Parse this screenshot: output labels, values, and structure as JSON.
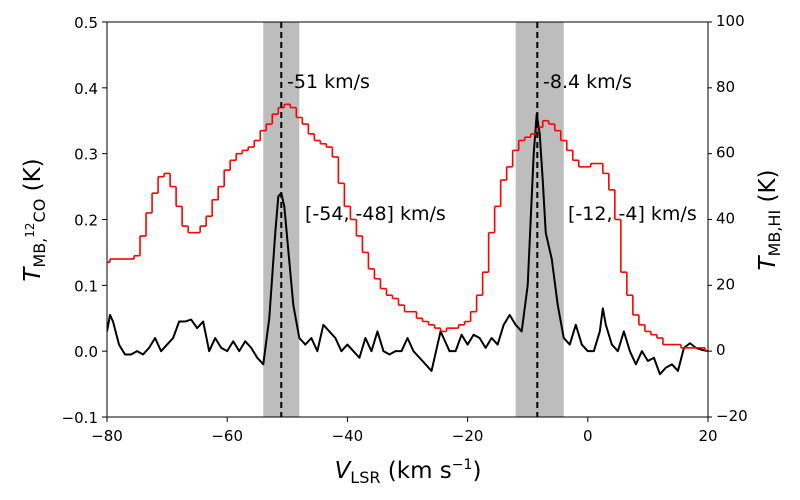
{
  "chart_data": {
    "type": "line",
    "xlabel": [
      "V",
      "LSR",
      " (km s",
      "−1",
      ")"
    ],
    "ylabel": [
      "T",
      "MB,",
      "12",
      "CO",
      " (K)"
    ],
    "y2label": [
      "T",
      "MB,HI",
      " (K)"
    ],
    "xlim": [
      -80,
      20
    ],
    "xticks": [
      {
        "value": -80,
        "label": "−80"
      },
      {
        "value": -60,
        "label": "−60"
      },
      {
        "value": -40,
        "label": "−40"
      },
      {
        "value": -20,
        "label": "−20"
      },
      0,
      20
    ],
    "ylim": [
      -0.1,
      0.5
    ],
    "yticks": [
      {
        "value": -0.1,
        "label": "−0.1"
      },
      {
        "value": 0,
        "label": "0.0"
      },
      0.1,
      0.2,
      0.3,
      0.4,
      0.5
    ],
    "y2lim": [
      -20,
      100
    ],
    "y2ticks": [
      {
        "value": -20,
        "label": "−20"
      },
      0,
      20,
      40,
      60,
      80,
      100
    ],
    "bands": [
      [
        -54,
        -48
      ],
      [
        -12,
        -4
      ]
    ],
    "band_color": "#bdbdbd",
    "vlines": [
      -51,
      -8.4
    ],
    "annotations": [
      "-51 km/s",
      "-8.4 km/s",
      "[-54, -48] km/s",
      "[-12, -4] km/s"
    ],
    "series": [
      {
        "color": "#000000",
        "x": [
          -80,
          -79.5,
          -79,
          -78,
          -77,
          -76,
          -75,
          -74,
          -73,
          -72,
          -71,
          -70,
          -69,
          -68,
          -67,
          -66,
          -65,
          -64,
          -63,
          -62,
          -61,
          -60,
          -59,
          -58,
          -57,
          -56,
          -55,
          -54,
          -53,
          -52,
          -51.5,
          -51,
          -50.5,
          -50,
          -49,
          -48,
          -47,
          -46,
          -45,
          -44,
          -43,
          -42,
          -41,
          -40,
          -39,
          -38,
          -37,
          -36,
          -35,
          -34,
          -33,
          -32,
          -31,
          -30,
          -29,
          -28,
          -27,
          -26,
          -25,
          -24.5,
          -24,
          -23,
          -22,
          -21,
          -20,
          -19,
          -18,
          -17,
          -16,
          -15,
          -14,
          -13,
          -12,
          -11,
          -10,
          -9.5,
          -9,
          -8.5,
          -8,
          -7.5,
          -7,
          -6,
          -5,
          -4,
          -3,
          -2,
          -1,
          0,
          1,
          2,
          2.5,
          3,
          4,
          5,
          6,
          7,
          8,
          9,
          10,
          11,
          12,
          13,
          14,
          15,
          16,
          17,
          18,
          19,
          20
        ],
        "values": [
          0.03,
          0.055,
          0.045,
          0.01,
          -0.005,
          -0.005,
          0.0,
          -0.005,
          0.005,
          0.02,
          0.0,
          0.01,
          0.02,
          0.045,
          0.045,
          0.048,
          0.035,
          0.045,
          0.0,
          0.02,
          0.005,
          0.0,
          0.015,
          0.0,
          0.015,
          0.005,
          -0.01,
          -0.02,
          0.05,
          0.18,
          0.235,
          0.24,
          0.22,
          0.17,
          0.07,
          0.02,
          0.01,
          0.02,
          0.0,
          0.04,
          0.03,
          0.02,
          0.0,
          0.01,
          0.0,
          -0.01,
          0.02,
          0.0,
          0.03,
          0.0,
          -0.005,
          0.0,
          0.0,
          0.02,
          0.0,
          -0.01,
          -0.02,
          -0.03,
          0.01,
          0.03,
          0.02,
          0.0,
          0.0,
          0.025,
          0.01,
          0.025,
          0.02,
          0.005,
          0.02,
          0.01,
          0.04,
          0.055,
          0.04,
          0.03,
          0.1,
          0.2,
          0.3,
          0.36,
          0.33,
          0.26,
          0.18,
          0.14,
          0.07,
          0.02,
          0.01,
          0.04,
          0.01,
          0.0,
          0.0,
          0.03,
          0.065,
          0.04,
          0.01,
          0.0,
          0.03,
          0.0,
          -0.02,
          0.0,
          -0.015,
          -0.01,
          -0.035,
          -0.025,
          -0.02,
          -0.03,
          0.005,
          0.012,
          0.005,
          0.002,
          0.0
        ]
      },
      {
        "color": "#ff0000",
        "axis": "y2",
        "step": true,
        "x": [
          -80,
          -79,
          -78,
          -77,
          -76,
          -75,
          -74,
          -73,
          -72,
          -71,
          -70,
          -69,
          -68,
          -67,
          -66,
          -65,
          -64,
          -63,
          -62,
          -61,
          -60,
          -59,
          -58,
          -57,
          -56,
          -55,
          -54,
          -53,
          -52,
          -51,
          -50,
          -49,
          -48,
          -47,
          -46,
          -45,
          -44,
          -43,
          -42,
          -41,
          -40,
          -39,
          -38,
          -37,
          -36,
          -35,
          -34,
          -33,
          -32,
          -31,
          -30,
          -29,
          -28,
          -27,
          -26,
          -25,
          -24,
          -23,
          -22,
          -21,
          -20,
          -19,
          -18,
          -17,
          -16,
          -15,
          -14,
          -13,
          -12,
          -11,
          -10,
          -9,
          -8,
          -7,
          -6,
          -5,
          -4,
          -3,
          -2,
          -1,
          0,
          1,
          2,
          3,
          4,
          5,
          6,
          7,
          8,
          9,
          10,
          11,
          12,
          13,
          14,
          15,
          16,
          17,
          18,
          19,
          20
        ],
        "values": [
          27,
          28,
          28,
          28,
          28,
          29,
          35,
          42,
          48,
          53,
          54,
          50,
          44,
          38,
          36,
          36,
          38,
          41,
          46,
          50,
          55,
          58,
          60,
          61,
          62,
          64,
          67,
          69,
          72,
          74,
          75,
          74,
          71,
          69,
          66,
          64,
          63,
          62,
          59,
          51,
          44,
          40,
          35,
          30,
          25,
          22,
          19,
          17,
          16,
          14,
          12,
          12,
          10,
          9,
          8,
          7,
          6,
          7,
          7,
          8,
          9,
          12,
          17,
          24,
          36,
          44,
          52,
          56,
          61,
          64,
          65,
          66,
          68,
          70,
          69,
          67,
          64,
          61,
          58,
          56,
          56,
          57,
          57,
          54,
          49,
          40,
          24,
          17,
          11,
          8,
          6,
          5,
          4,
          2,
          2,
          2,
          1,
          1,
          1,
          1,
          0
        ]
      }
    ]
  }
}
